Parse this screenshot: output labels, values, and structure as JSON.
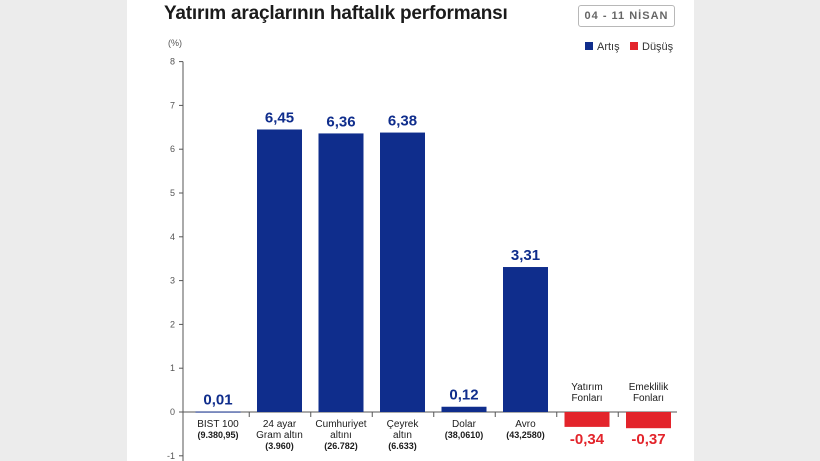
{
  "title": "Yatırım araçlarının haftalık performansı",
  "date_range": "04 - 11 NİSAN",
  "colors": {
    "positive": "#0f2d8c",
    "negative": "#e3242b",
    "side_background": "#ececec"
  },
  "chart_data": {
    "type": "bar",
    "title": "Yatırım araçlarının haftalık performansı",
    "ylabel": "(%)",
    "xlabel": "",
    "ylim": [
      -1,
      8
    ],
    "yticks": [
      -1,
      0,
      1,
      2,
      3,
      4,
      5,
      6,
      7,
      8
    ],
    "grid": false,
    "legend": [
      {
        "name": "Artış",
        "color": "#0f2d8c"
      },
      {
        "name": "Düşüş",
        "color": "#e3242b"
      }
    ],
    "categories": [
      {
        "name_lines": [
          "BIST 100"
        ],
        "sub": "(9.380,95)"
      },
      {
        "name_lines": [
          "24 ayar",
          "Gram altın"
        ],
        "sub": "(3.960)"
      },
      {
        "name_lines": [
          "Cumhuriyet",
          "altını"
        ],
        "sub": "(26.782)"
      },
      {
        "name_lines": [
          "Çeyrek",
          "altın"
        ],
        "sub": "(6.633)"
      },
      {
        "name_lines": [
          "Dolar"
        ],
        "sub": "(38,0610)"
      },
      {
        "name_lines": [
          "Avro"
        ],
        "sub": "(43,2580)"
      },
      {
        "name_lines": [
          "Yatırım",
          "Fonları"
        ],
        "sub": ""
      },
      {
        "name_lines": [
          "Emeklilik",
          "Fonları"
        ],
        "sub": ""
      }
    ],
    "values": [
      0.01,
      6.45,
      6.36,
      6.38,
      0.12,
      3.31,
      -0.34,
      -0.37
    ],
    "value_labels": [
      "0,01",
      "6,45",
      "6,36",
      "6,38",
      "0,12",
      "3,31",
      "-0,34",
      "-0,37"
    ]
  }
}
